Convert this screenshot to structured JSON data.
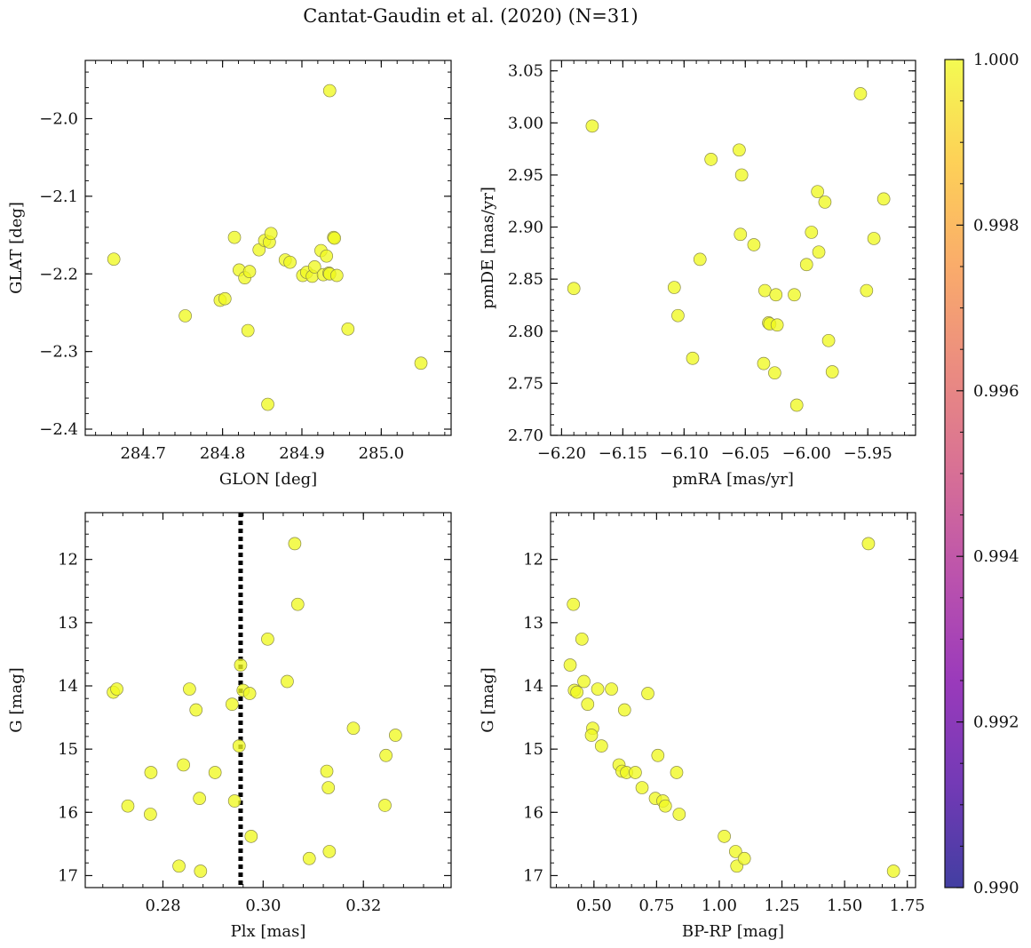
{
  "figure": {
    "title": "Cantat-Gaudin et al. (2020) (N=31)"
  },
  "colorbar": {
    "range": [
      0.99,
      1.0
    ],
    "ticks": [
      0.99,
      0.992,
      0.994,
      0.996,
      0.998,
      1.0
    ],
    "tick_labels": [
      "0.990",
      "0.992",
      "0.994",
      "0.996",
      "0.998",
      "1.000"
    ],
    "colormap": "plasma"
  },
  "chart_data": [
    {
      "type": "scatter",
      "xlabel": "GLON [deg]",
      "ylabel": "GLAT [deg]",
      "xlim": [
        284.627,
        285.088
      ],
      "ylim": [
        -2.408,
        -1.925
      ],
      "x_ticks": [
        284.7,
        284.8,
        284.9,
        285.0
      ],
      "x_tick_labels": [
        "284.7",
        "284.8",
        "284.9",
        "285.0"
      ],
      "y_ticks": [
        -2.4,
        -2.3,
        -2.2,
        -2.1,
        -2.0
      ],
      "y_tick_labels": [
        "−2.4",
        "−2.3",
        "−2.2",
        "−2.1",
        "−2.0"
      ],
      "point_color": "#f0f921",
      "x": [
        284.663,
        284.753,
        284.797,
        284.803,
        284.815,
        284.821,
        284.828,
        284.832,
        284.834,
        284.846,
        284.853,
        284.859,
        284.861,
        284.857,
        284.879,
        284.885,
        284.901,
        284.906,
        284.913,
        284.916,
        284.924,
        284.927,
        284.931,
        284.935,
        284.934,
        284.935,
        284.94,
        284.941,
        284.944,
        284.958,
        285.05
      ],
      "y": [
        -2.181,
        -2.254,
        -2.234,
        -2.232,
        -2.153,
        -2.195,
        -2.205,
        -2.273,
        -2.197,
        -2.169,
        -2.157,
        -2.159,
        -2.148,
        -2.368,
        -2.182,
        -2.185,
        -2.202,
        -2.198,
        -2.203,
        -2.191,
        -2.17,
        -2.201,
        -2.177,
        -1.964,
        -2.199,
        -2.2,
        -2.153,
        -2.154,
        -2.202,
        -2.271,
        -2.315
      ]
    },
    {
      "type": "scatter",
      "xlabel": "pmRA [mas/yr]",
      "ylabel": "pmDE [mas/yr]",
      "xlim": [
        -6.209,
        -5.911
      ],
      "ylim": [
        2.7,
        3.06
      ],
      "x_ticks": [
        -6.2,
        -6.15,
        -6.1,
        -6.05,
        -6.0,
        -5.95
      ],
      "x_tick_labels": [
        "−6.20",
        "−6.15",
        "−6.10",
        "−6.05",
        "−6.00",
        "−5.95"
      ],
      "y_ticks": [
        2.7,
        2.75,
        2.8,
        2.85,
        2.9,
        2.95,
        3.0,
        3.05
      ],
      "y_tick_labels": [
        "2.70",
        "2.75",
        "2.80",
        "2.85",
        "2.90",
        "2.95",
        "3.00",
        "3.05"
      ],
      "point_color": "#f0f921",
      "x": [
        -6.19,
        -6.175,
        -6.108,
        -6.105,
        -6.093,
        -6.087,
        -6.078,
        -6.055,
        -6.054,
        -6.053,
        -6.043,
        -6.035,
        -6.034,
        -6.031,
        -6.03,
        -6.026,
        -6.025,
        -6.024,
        -6.01,
        -6.008,
        -6.0,
        -5.996,
        -5.991,
        -5.99,
        -5.985,
        -5.982,
        -5.979,
        -5.956,
        -5.951,
        -5.945,
        -5.937
      ],
      "y": [
        2.841,
        2.997,
        2.842,
        2.815,
        2.774,
        2.869,
        2.965,
        2.974,
        2.893,
        2.95,
        2.883,
        2.769,
        2.839,
        2.808,
        2.807,
        2.76,
        2.835,
        2.806,
        2.835,
        2.729,
        2.864,
        2.895,
        2.934,
        2.876,
        2.924,
        2.791,
        2.761,
        3.028,
        2.839,
        2.889,
        2.927
      ]
    },
    {
      "type": "scatter",
      "xlabel": "Plx [mas]",
      "ylabel": "G [mag]",
      "xlim": [
        0.2645,
        0.3375
      ],
      "ylim": [
        17.19,
        11.26
      ],
      "x_ticks": [
        0.28,
        0.3,
        0.32
      ],
      "x_tick_labels": [
        "0.28",
        "0.30",
        "0.32"
      ],
      "y_ticks": [
        12,
        13,
        14,
        15,
        16,
        17
      ],
      "y_tick_labels": [
        "12",
        "13",
        "14",
        "15",
        "16",
        "17"
      ],
      "point_color": "#f0f921",
      "reference_line": {
        "orientation": "vertical",
        "x": 0.2955,
        "style": "dotted",
        "color": "#000000"
      },
      "x": [
        0.2701,
        0.2708,
        0.273,
        0.2775,
        0.2776,
        0.2832,
        0.2841,
        0.2853,
        0.2866,
        0.2873,
        0.2875,
        0.2904,
        0.2938,
        0.2943,
        0.2952,
        0.2955,
        0.296,
        0.2973,
        0.2976,
        0.3009,
        0.3048,
        0.3063,
        0.3069,
        0.3092,
        0.3127,
        0.313,
        0.3132,
        0.318,
        0.3243,
        0.3245,
        0.3264
      ],
      "y": [
        14.1,
        14.05,
        15.9,
        16.03,
        15.37,
        16.85,
        15.25,
        14.05,
        14.38,
        15.78,
        16.93,
        15.37,
        14.29,
        15.82,
        14.95,
        13.67,
        14.07,
        14.12,
        16.38,
        13.26,
        13.93,
        11.75,
        12.71,
        16.73,
        15.35,
        15.61,
        16.62,
        14.67,
        15.89,
        15.1,
        14.78
      ]
    },
    {
      "type": "scatter",
      "xlabel": "BP-RP [mag]",
      "ylabel": "G [mag]",
      "xlim": [
        0.327,
        1.783
      ],
      "ylim": [
        17.19,
        11.26
      ],
      "x_ticks": [
        0.5,
        0.75,
        1.0,
        1.25,
        1.5,
        1.75
      ],
      "x_tick_labels": [
        "0.50",
        "0.75",
        "1.00",
        "1.25",
        "1.50",
        "1.75"
      ],
      "y_ticks": [
        12,
        13,
        14,
        15,
        16,
        17
      ],
      "y_tick_labels": [
        "12",
        "13",
        "14",
        "15",
        "16",
        "17"
      ],
      "point_color": "#f0f921",
      "x": [
        0.405,
        0.418,
        0.422,
        0.432,
        0.452,
        0.46,
        0.475,
        0.495,
        0.49,
        0.515,
        0.53,
        0.57,
        0.6,
        0.612,
        0.622,
        0.63,
        0.665,
        0.692,
        0.715,
        0.745,
        0.755,
        0.775,
        0.785,
        0.83,
        0.84,
        1.02,
        1.065,
        1.07,
        1.1,
        1.595,
        1.695
      ],
      "y": [
        13.67,
        12.71,
        14.07,
        14.1,
        13.26,
        13.93,
        14.29,
        14.67,
        14.78,
        14.05,
        14.95,
        14.05,
        15.25,
        15.35,
        14.38,
        15.37,
        15.37,
        15.61,
        14.12,
        15.78,
        15.1,
        15.82,
        15.9,
        15.37,
        16.03,
        16.38,
        16.62,
        16.85,
        16.73,
        11.75,
        16.93
      ]
    }
  ]
}
